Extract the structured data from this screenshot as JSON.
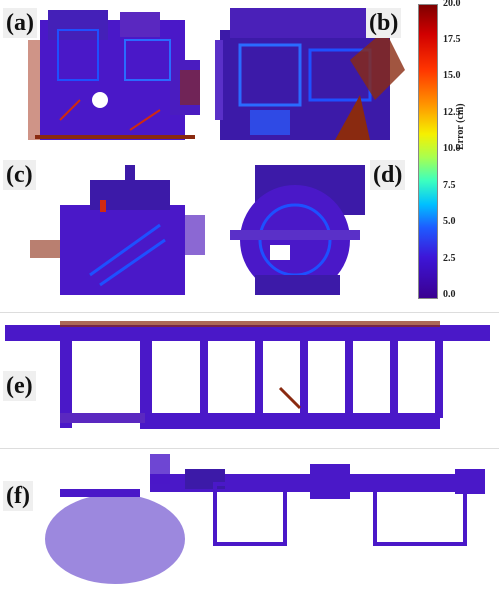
{
  "panels": [
    {
      "label": "(a)"
    },
    {
      "label": "(b)"
    },
    {
      "label": "(c)"
    },
    {
      "label": "(d)"
    },
    {
      "label": "(e)"
    },
    {
      "label": "(f)"
    }
  ],
  "colorbar": {
    "title": "Error (cm)",
    "ticks": [
      "20.0",
      "17.5",
      "15.0",
      "12.5",
      "10.0",
      "7.5",
      "5.0",
      "2.5",
      "0.0"
    ],
    "colors": {
      "low": "#3a0090",
      "mid": "#00c0ff",
      "high": "#7f0000"
    }
  }
}
